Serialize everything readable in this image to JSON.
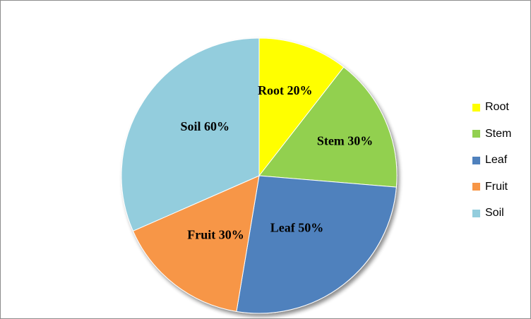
{
  "chart_data": {
    "type": "pie",
    "title": "",
    "categories": [
      "Root",
      "Stem",
      "Leaf",
      "Fruit",
      "Soil"
    ],
    "values": [
      20,
      30,
      50,
      30,
      60
    ],
    "slice_labels": [
      "Root 20%",
      "Stem 30%",
      "Leaf 50%",
      "Fruit 30%",
      "Soil 60%"
    ],
    "colors": [
      "#FFFF00",
      "#92D050",
      "#4F81BD",
      "#F79646",
      "#93CDDD"
    ],
    "legend_placement": "right"
  }
}
